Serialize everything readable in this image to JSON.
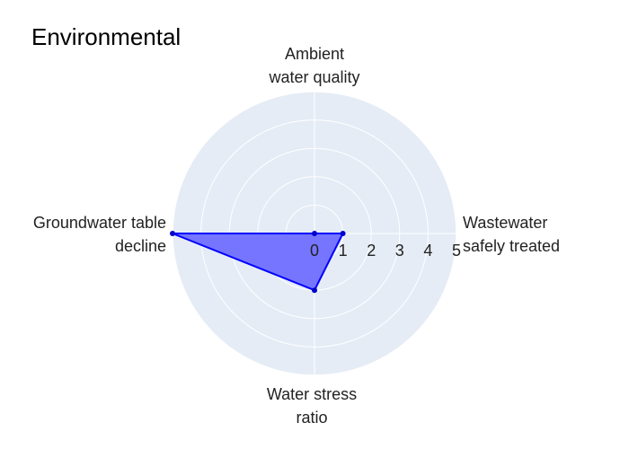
{
  "chart_data": {
    "type": "radar",
    "title": "Environmental",
    "axes": [
      {
        "lines": [
          "Wastewater",
          "safely treated"
        ]
      },
      {
        "lines": [
          "Ambient",
          "water quality"
        ]
      },
      {
        "lines": [
          "Groundwater table",
          "decline"
        ]
      },
      {
        "lines": [
          "Water stress",
          "ratio"
        ]
      }
    ],
    "axis_keys": [
      "Wastewater safely treated",
      "Ambient water quality",
      "Groundwater table decline",
      "Water stress ratio"
    ],
    "values": [
      1,
      0,
      5,
      2
    ],
    "radial_range": [
      0,
      5
    ],
    "radial_ticks": [
      0,
      1,
      2,
      3,
      4,
      5
    ],
    "grid": true,
    "colors": {
      "polar_bg": "#e5ecf6",
      "grid": "#ffffff",
      "fill": "#7575ff",
      "line": "#0000ff",
      "marker": "#0000cc"
    }
  }
}
